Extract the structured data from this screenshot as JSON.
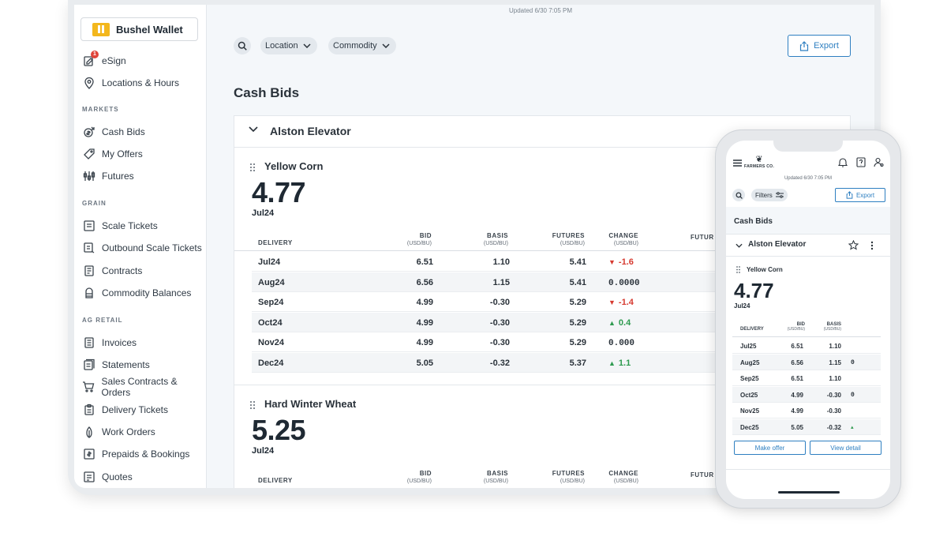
{
  "app": {
    "brand": "Bushel Wallet",
    "updated": "Updated 6/30 7:05 PM"
  },
  "sidebar": {
    "top_items": [
      {
        "label": "eSign",
        "icon": "esign-icon",
        "badge": "1"
      },
      {
        "label": "Locations & Hours",
        "icon": "location-pin-icon"
      }
    ],
    "sections": [
      {
        "heading": "MARKETS",
        "items": [
          {
            "label": "Cash Bids",
            "icon": "cash-bids-icon"
          },
          {
            "label": "My Offers",
            "icon": "tag-icon"
          },
          {
            "label": "Futures",
            "icon": "futures-icon"
          }
        ]
      },
      {
        "heading": "GRAIN",
        "items": [
          {
            "label": "Scale Tickets",
            "icon": "scale-ticket-icon"
          },
          {
            "label": "Outbound Scale Tickets",
            "icon": "outbound-ticket-icon"
          },
          {
            "label": "Contracts",
            "icon": "contracts-icon"
          },
          {
            "label": "Commodity Balances",
            "icon": "silo-icon"
          }
        ]
      },
      {
        "heading": "AG RETAIL",
        "items": [
          {
            "label": "Invoices",
            "icon": "invoice-icon"
          },
          {
            "label": "Statements",
            "icon": "statement-icon"
          },
          {
            "label": "Sales Contracts & Orders",
            "icon": "cart-icon"
          },
          {
            "label": "Delivery Tickets",
            "icon": "clipboard-icon"
          },
          {
            "label": "Work Orders",
            "icon": "leaf-icon"
          },
          {
            "label": "Prepaids & Bookings",
            "icon": "prepaid-icon"
          },
          {
            "label": "Quotes",
            "icon": "quote-icon"
          }
        ]
      }
    ]
  },
  "filters": {
    "location": "Location",
    "commodity": "Commodity",
    "export": "Export"
  },
  "page_title": "Cash Bids",
  "location_card": {
    "title": "Alston Elevator",
    "columns": [
      {
        "label": "DELIVERY",
        "unit": ""
      },
      {
        "label": "BID",
        "unit": "(USD/BU)"
      },
      {
        "label": "BASIS",
        "unit": "(USD/BU)"
      },
      {
        "label": "FUTURES",
        "unit": "(USD/BU)"
      },
      {
        "label": "CHANGE",
        "unit": "(USD/BU)"
      },
      {
        "label": "FUTUR",
        "unit": ""
      }
    ],
    "commodities": [
      {
        "name": "Yellow Corn",
        "price": "4.77",
        "month": "Jul24",
        "rows": [
          {
            "delivery": "Jul24",
            "bid": "6.51",
            "basis": "1.10",
            "futures": "5.41",
            "change": "-1.6",
            "dir": "down"
          },
          {
            "delivery": "Aug24",
            "bid": "6.56",
            "basis": "1.15",
            "futures": "5.41",
            "change": "0.0000",
            "dir": "flat"
          },
          {
            "delivery": "Sep24",
            "bid": "4.99",
            "basis": "-0.30",
            "futures": "5.29",
            "change": "-1.4",
            "dir": "down"
          },
          {
            "delivery": "Oct24",
            "bid": "4.99",
            "basis": "-0.30",
            "futures": "5.29",
            "change": "0.4",
            "dir": "up"
          },
          {
            "delivery": "Nov24",
            "bid": "4.99",
            "basis": "-0.30",
            "futures": "5.29",
            "change": "0.000",
            "dir": "flat"
          },
          {
            "delivery": "Dec24",
            "bid": "5.05",
            "basis": "-0.32",
            "futures": "5.37",
            "change": "1.1",
            "dir": "up"
          }
        ]
      },
      {
        "name": "Hard Winter Wheat",
        "price": "5.25",
        "month": "Jul24",
        "rows": []
      }
    ]
  },
  "phone": {
    "brand": "FARMERS CO.",
    "updated": "Updated 6/30 7:05 PM",
    "filters": "Filters",
    "export": "Export",
    "page_title": "Cash Bids",
    "card_title": "Alston Elevator",
    "commodity": "Yellow Corn",
    "price": "4.77",
    "month": "Jul24",
    "columns": [
      {
        "label": "DELIVERY",
        "unit": ""
      },
      {
        "label": "BID",
        "unit": "(USD/BU)"
      },
      {
        "label": "BASIS",
        "unit": "(USD/BU)"
      }
    ],
    "rows": [
      {
        "delivery": "Jul25",
        "bid": "6.51",
        "basis": "1.10",
        "extra": ""
      },
      {
        "delivery": "Aug25",
        "bid": "6.56",
        "basis": "1.15",
        "extra": "0"
      },
      {
        "delivery": "Sep25",
        "bid": "6.51",
        "basis": "1.10",
        "extra": ""
      },
      {
        "delivery": "Oct25",
        "bid": "4.99",
        "basis": "-0.30",
        "extra": "0"
      },
      {
        "delivery": "Nov25",
        "bid": "4.99",
        "basis": "-0.30",
        "extra": ""
      },
      {
        "delivery": "Dec25",
        "bid": "5.05",
        "basis": "-0.32",
        "extra": "▲"
      }
    ],
    "make_offer": "Make offer",
    "view_detail": "View detail"
  },
  "colors": {
    "accent": "#2e7fc1",
    "brand_yellow": "#f3b71d",
    "up": "#2e9a4f",
    "down": "#d6392f"
  }
}
